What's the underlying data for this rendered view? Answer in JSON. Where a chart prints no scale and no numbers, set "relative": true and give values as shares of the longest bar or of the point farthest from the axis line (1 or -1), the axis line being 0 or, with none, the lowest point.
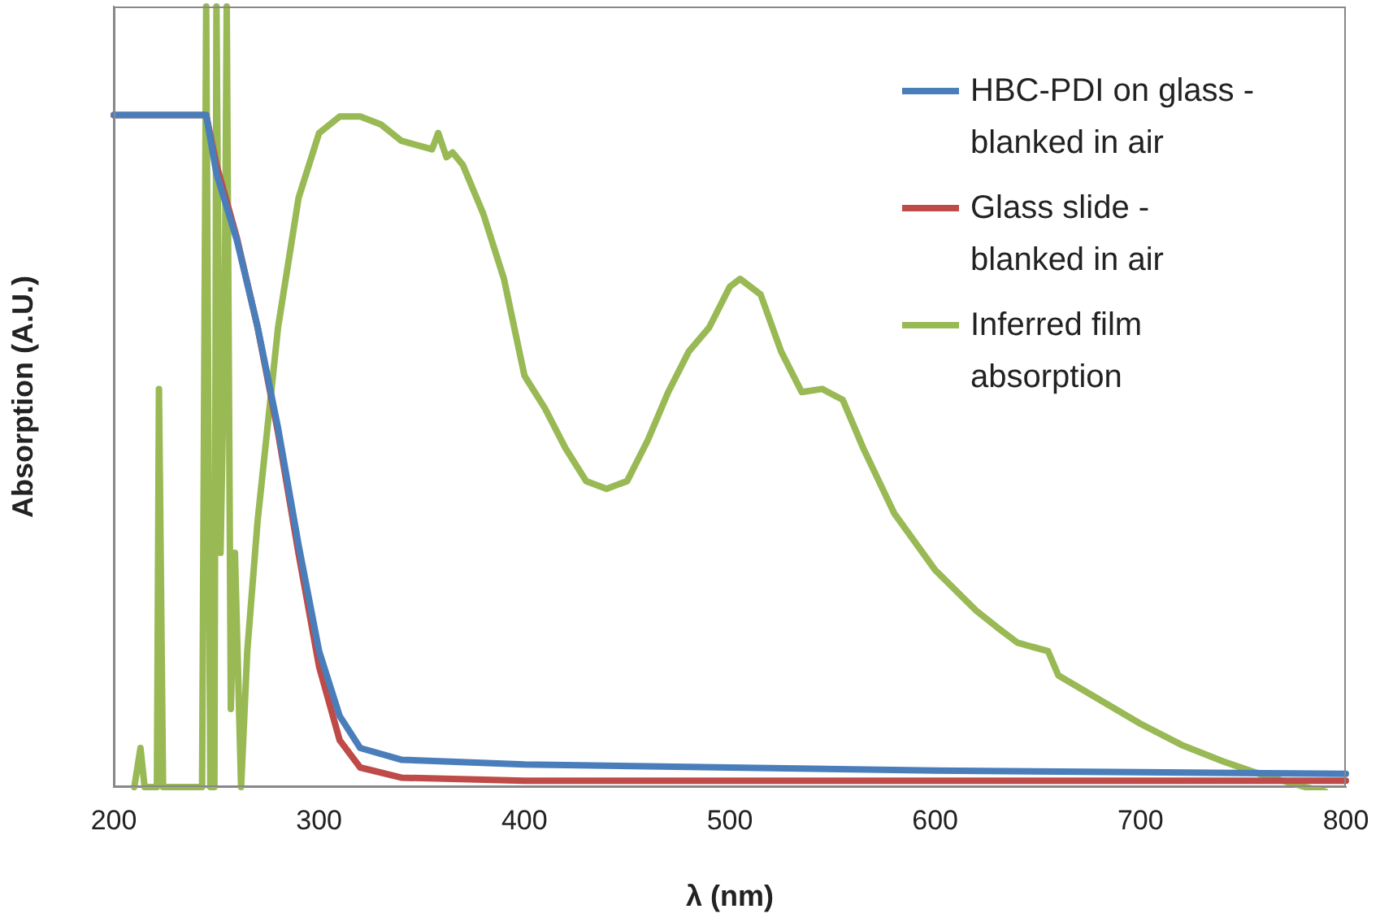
{
  "chart_data": {
    "type": "line",
    "xlabel": "λ (nm)",
    "ylabel": "Absorption (A.U.)",
    "relative": true,
    "xlim": [
      200,
      800
    ],
    "xticks": [
      200,
      300,
      400,
      500,
      600,
      700,
      800
    ],
    "legend": "top right",
    "grid": false,
    "marker": "none",
    "series": [
      {
        "name": "HBC-PDI on glass - blanked in air",
        "color": "#4a7ebb",
        "x": [
          200,
          245,
          250,
          260,
          270,
          280,
          290,
          300,
          310,
          320,
          340,
          400,
          500,
          600,
          700,
          800
        ],
        "values": [
          0.861,
          0.861,
          0.786,
          0.7,
          0.59,
          0.46,
          0.31,
          0.174,
          0.091,
          0.05,
          0.035,
          0.029,
          0.025,
          0.021,
          0.019,
          0.017
        ]
      },
      {
        "name": "Glass slide - blanked in air",
        "color": "#be4b48",
        "x": [
          200,
          245,
          250,
          260,
          270,
          280,
          290,
          300,
          310,
          320,
          340,
          400,
          800
        ],
        "values": [
          0.861,
          0.861,
          0.797,
          0.703,
          0.589,
          0.454,
          0.299,
          0.154,
          0.06,
          0.025,
          0.012,
          0.008,
          0.008
        ]
      },
      {
        "name": "Inferred film absorption",
        "color": "#98b954",
        "x": [
          210,
          213,
          215,
          221,
          222,
          224,
          243,
          245,
          247,
          249,
          250,
          252,
          254,
          255,
          257,
          259,
          260,
          262,
          265,
          270,
          280,
          290,
          300,
          310,
          320,
          330,
          340,
          355,
          358,
          362,
          365,
          370,
          380,
          390,
          400,
          410,
          420,
          430,
          440,
          450,
          460,
          470,
          480,
          490,
          500,
          505,
          515,
          525,
          535,
          545,
          555,
          565,
          580,
          600,
          620,
          630,
          640,
          655,
          660,
          680,
          700,
          720,
          740,
          760,
          780,
          790
        ],
        "values": [
          0,
          0.05,
          0,
          0,
          0.51,
          0,
          0,
          1,
          0,
          0,
          1,
          0.3,
          0.6,
          1,
          0.1,
          0.3,
          0.2,
          0,
          0.174,
          0.34,
          0.589,
          0.755,
          0.838,
          0.859,
          0.859,
          0.849,
          0.828,
          0.817,
          0.838,
          0.807,
          0.813,
          0.797,
          0.734,
          0.651,
          0.527,
          0.485,
          0.434,
          0.392,
          0.382,
          0.392,
          0.444,
          0.506,
          0.558,
          0.589,
          0.641,
          0.651,
          0.631,
          0.558,
          0.506,
          0.51,
          0.496,
          0.434,
          0.351,
          0.278,
          0.226,
          0.205,
          0.185,
          0.174,
          0.143,
          0.112,
          0.081,
          0.054,
          0.033,
          0.015,
          0,
          -0.006
        ]
      }
    ]
  }
}
